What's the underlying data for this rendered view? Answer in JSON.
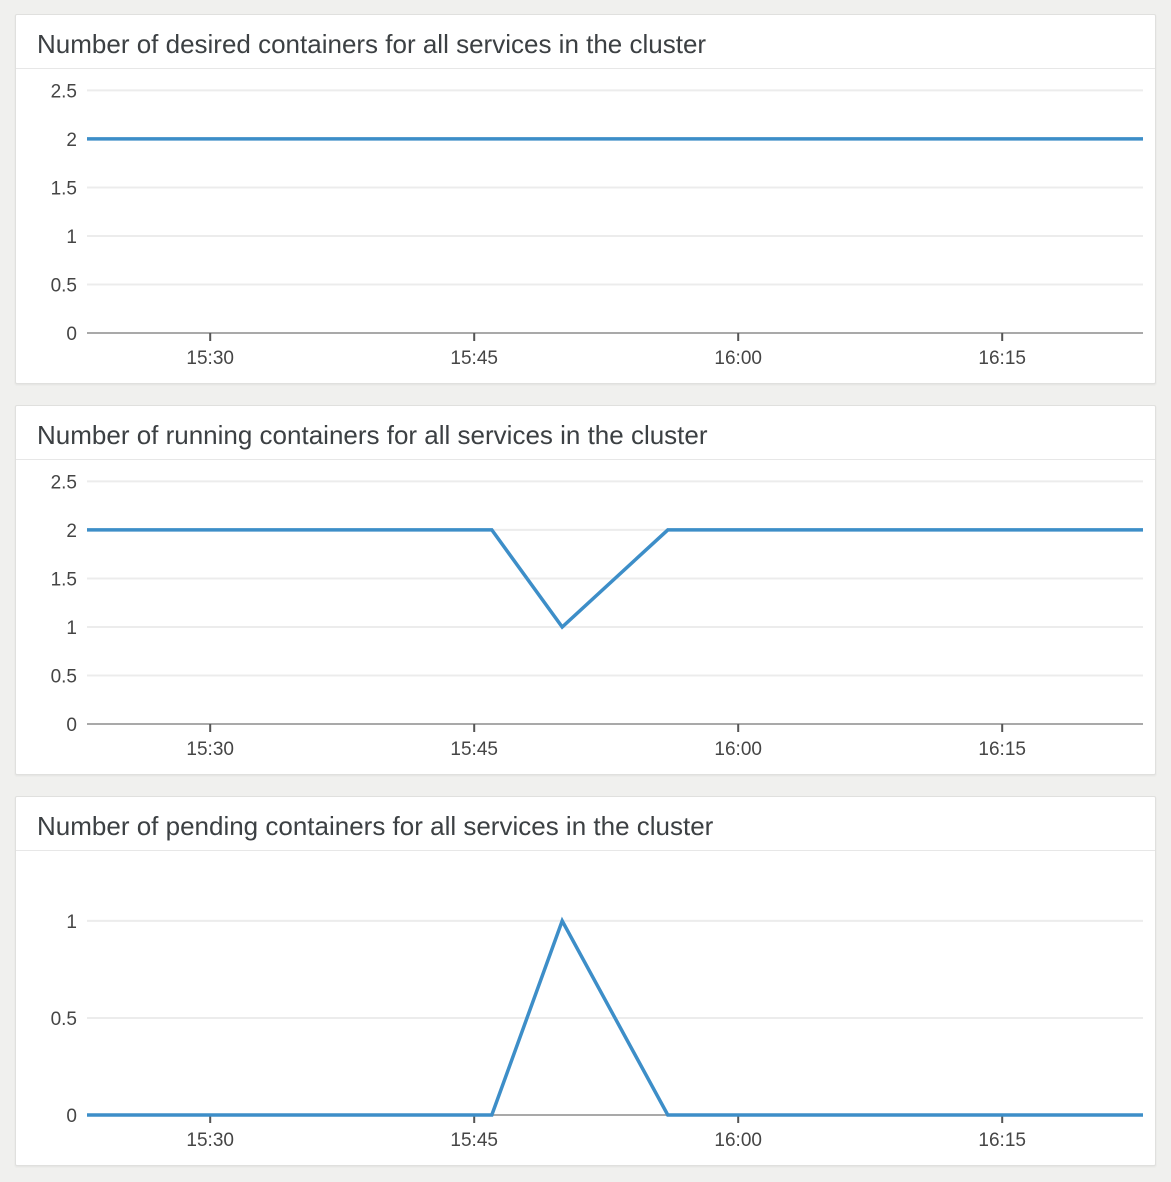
{
  "page": {
    "background_color": "#f0f0ee",
    "panel_background": "#ffffff"
  },
  "colors": {
    "line": "#3d8ec8",
    "gridline": "#ececec",
    "axis_line": "#a9a9a9",
    "tick_mark": "#555555",
    "axis_label": "#454545",
    "title_text": "#3c4043",
    "panel_border": "#e0e0de",
    "header_divider": "#e7e7e7"
  },
  "x_axis": {
    "domain_start": "15:23",
    "domain_end": "16:23",
    "ticks": [
      "15:30",
      "15:45",
      "16:00",
      "16:15"
    ]
  },
  "chart_data": [
    {
      "type": "line",
      "title": "Number of desired containers for all services in the cluster",
      "xlabel": "",
      "ylabel": "",
      "x_tick_labels": [
        "15:30",
        "15:45",
        "16:00",
        "16:15"
      ],
      "y_ticks": [
        0,
        0.5,
        1,
        1.5,
        2,
        2.5
      ],
      "ylim": [
        0,
        2.7
      ],
      "grid": true,
      "legend": "none",
      "points": [
        {
          "t": "15:23",
          "v": 2
        },
        {
          "t": "16:23",
          "v": 2
        }
      ]
    },
    {
      "type": "line",
      "title": "Number of running containers for all services in the cluster",
      "xlabel": "",
      "ylabel": "",
      "x_tick_labels": [
        "15:30",
        "15:45",
        "16:00",
        "16:15"
      ],
      "y_ticks": [
        0,
        0.5,
        1,
        1.5,
        2,
        2.5
      ],
      "ylim": [
        0,
        2.7
      ],
      "grid": true,
      "legend": "none",
      "points": [
        {
          "t": "15:23",
          "v": 2
        },
        {
          "t": "15:46",
          "v": 2
        },
        {
          "t": "15:50",
          "v": 1
        },
        {
          "t": "15:56",
          "v": 2
        },
        {
          "t": "16:23",
          "v": 2
        }
      ]
    },
    {
      "type": "line",
      "title": "Number of pending containers for all services in the cluster",
      "xlabel": "",
      "ylabel": "",
      "x_tick_labels": [
        "15:30",
        "15:45",
        "16:00",
        "16:15"
      ],
      "y_ticks": [
        0,
        0.5,
        1
      ],
      "ylim": [
        0,
        1.35
      ],
      "grid": true,
      "legend": "none",
      "points": [
        {
          "t": "15:23",
          "v": 0
        },
        {
          "t": "15:46",
          "v": 0
        },
        {
          "t": "15:50",
          "v": 1
        },
        {
          "t": "15:56",
          "v": 0
        },
        {
          "t": "16:23",
          "v": 0
        }
      ]
    }
  ]
}
